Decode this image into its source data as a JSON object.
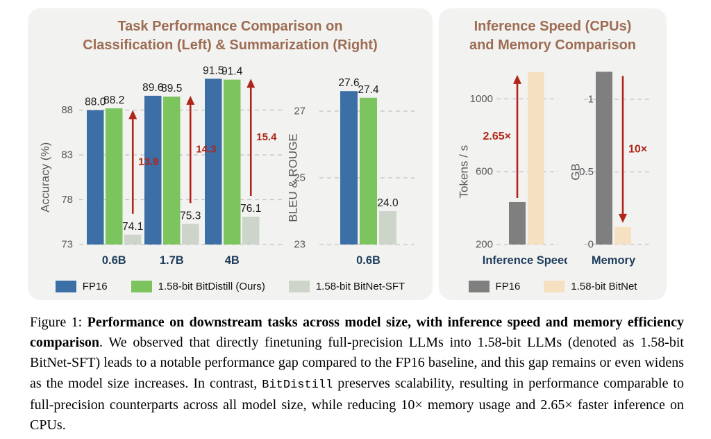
{
  "left_panel": {
    "title_line1": "Task Performance Comparison on",
    "title_line2": "Classification (Left) & Summarization (Right)",
    "legend": [
      {
        "label": "FP16",
        "color": "#3c6fa6"
      },
      {
        "label": "1.58-bit BitDistill (Ours)",
        "color": "#7cc45e"
      },
      {
        "label": "1.58-bit BitNet-SFT",
        "color": "#cdd4ca"
      }
    ]
  },
  "right_panel": {
    "title_line1": "Inference Speed (CPUs)",
    "title_line2": "and Memory Comparison",
    "legend": [
      {
        "label": "FP16",
        "color": "#7f7f7f"
      },
      {
        "label": "1.58-bit BitNet",
        "color": "#f5e0c2"
      }
    ]
  },
  "chart_data": [
    {
      "id": "classification",
      "type": "bar",
      "title": "Task Performance Comparison on Classification",
      "ylabel": "Accuracy (%)",
      "ylim": [
        73,
        92.5
      ],
      "ytick_values": [
        73,
        78,
        83,
        88
      ],
      "ytick_labels": [
        "73",
        "78",
        "83",
        "88"
      ],
      "categories": [
        "0.6B",
        "1.7B",
        "4B"
      ],
      "series": [
        {
          "name": "FP16",
          "color": "#3c6fa6",
          "values": [
            88.0,
            89.6,
            91.5
          ]
        },
        {
          "name": "1.58-bit BitDistill (Ours)",
          "color": "#7cc45e",
          "values": [
            88.2,
            89.5,
            91.4
          ]
        },
        {
          "name": "1.58-bit BitNet-SFT",
          "color": "#cdd4ca",
          "values": [
            74.1,
            75.3,
            76.1
          ]
        }
      ],
      "value_labels": true,
      "grid": "dashed",
      "legend_position": "bottom",
      "arrows": [
        {
          "label": "13.9",
          "group_index": 0,
          "over_series": 2,
          "start_value": 74.1,
          "end_value": 88.0,
          "direction": "up",
          "label_side": "right"
        },
        {
          "label": "14.3",
          "group_index": 1,
          "over_series": 2,
          "start_value": 75.3,
          "end_value": 89.6,
          "direction": "up",
          "label_side": "right"
        },
        {
          "label": "15.4",
          "group_index": 2,
          "over_series": 2,
          "start_value": 76.1,
          "end_value": 91.5,
          "direction": "up",
          "label_side": "right"
        }
      ]
    },
    {
      "id": "summarization",
      "type": "bar",
      "title": "Task Performance Comparison on Summarization",
      "ylabel": "BLEU & ROUGE",
      "ylim": [
        23,
        28.2
      ],
      "ytick_values": [
        23,
        25,
        27
      ],
      "ytick_labels": [
        "23",
        "25",
        "27"
      ],
      "categories": [
        "0.6B"
      ],
      "series": [
        {
          "name": "FP16",
          "color": "#3c6fa6",
          "values": [
            27.6
          ]
        },
        {
          "name": "1.58-bit BitDistill (Ours)",
          "color": "#7cc45e",
          "values": [
            27.4
          ]
        },
        {
          "name": "1.58-bit BitNet-SFT",
          "color": "#cdd4ca",
          "values": [
            24.0
          ]
        }
      ],
      "value_labels": true,
      "grid": "dashed",
      "arrows": []
    },
    {
      "id": "inference-speed",
      "type": "bar",
      "title": "Inference Speed (CPUs)",
      "ylabel": "Tokens / s",
      "ylim": [
        200,
        1200
      ],
      "ytick_values": [
        200,
        600,
        1000
      ],
      "ytick_labels": [
        "200",
        "600",
        "1000"
      ],
      "categories": [
        "Inference Speed"
      ],
      "series": [
        {
          "name": "FP16",
          "color": "#7f7f7f",
          "values": [
            433
          ]
        },
        {
          "name": "1.58-bit BitNet",
          "color": "#f5e0c2",
          "values": [
            1147
          ]
        }
      ],
      "value_labels": false,
      "grid": "dashed",
      "arrows": [
        {
          "label": "2.65×",
          "group_index": 0,
          "over_series": 0,
          "start_value": 433,
          "end_value": 1147,
          "direction": "up",
          "label_side": "left"
        }
      ]
    },
    {
      "id": "memory",
      "type": "bar",
      "title": "Memory Comparison",
      "ylabel": "GB",
      "ylim": [
        0,
        1.2
      ],
      "ytick_values": [
        0,
        0.5,
        1
      ],
      "ytick_labels": [
        "0",
        "0.5",
        "1"
      ],
      "categories": [
        "Memory"
      ],
      "series": [
        {
          "name": "FP16",
          "color": "#7f7f7f",
          "values": [
            1.19
          ]
        },
        {
          "name": "1.58-bit BitNet",
          "color": "#f5e0c2",
          "values": [
            0.12
          ]
        }
      ],
      "value_labels": false,
      "grid": "dashed",
      "arrows": [
        {
          "label": "10×",
          "group_index": 0,
          "over_series": 1,
          "start_value": 1.19,
          "end_value": 0.12,
          "direction": "down",
          "label_side": "right"
        }
      ]
    }
  ],
  "caption": {
    "segments": [
      {
        "text": "Figure 1: ",
        "style": "normal"
      },
      {
        "text": "Performance on downstream tasks across model size, with inference speed and memory efficiency comparison",
        "style": "bold"
      },
      {
        "text": ". We observed that directly finetuning full-precision LLMs into 1.58-bit LLMs (denoted as 1.58-bit BitNet-SFT) leads to a notable performance gap compared to the FP16 baseline, and this gap remains or even widens as the model size increases. In contrast, ",
        "style": "normal"
      },
      {
        "text": "BitDistill",
        "style": "mono"
      },
      {
        "text": " preserves scalability, resulting in performance comparable to full-precision counterparts across all model size, while reducing 10× memory usage and 2.65× faster inference on CPUs.",
        "style": "normal"
      }
    ]
  },
  "colors": {
    "panel_background": "#f2f2f0",
    "title_brown": "#9d6c53",
    "category_navy": "#1f3d5c",
    "axis_gray": "#58585a",
    "value_label": "#1a1a1a",
    "arrow_red": "#b0251a",
    "gridline": "#c2c2c2"
  }
}
